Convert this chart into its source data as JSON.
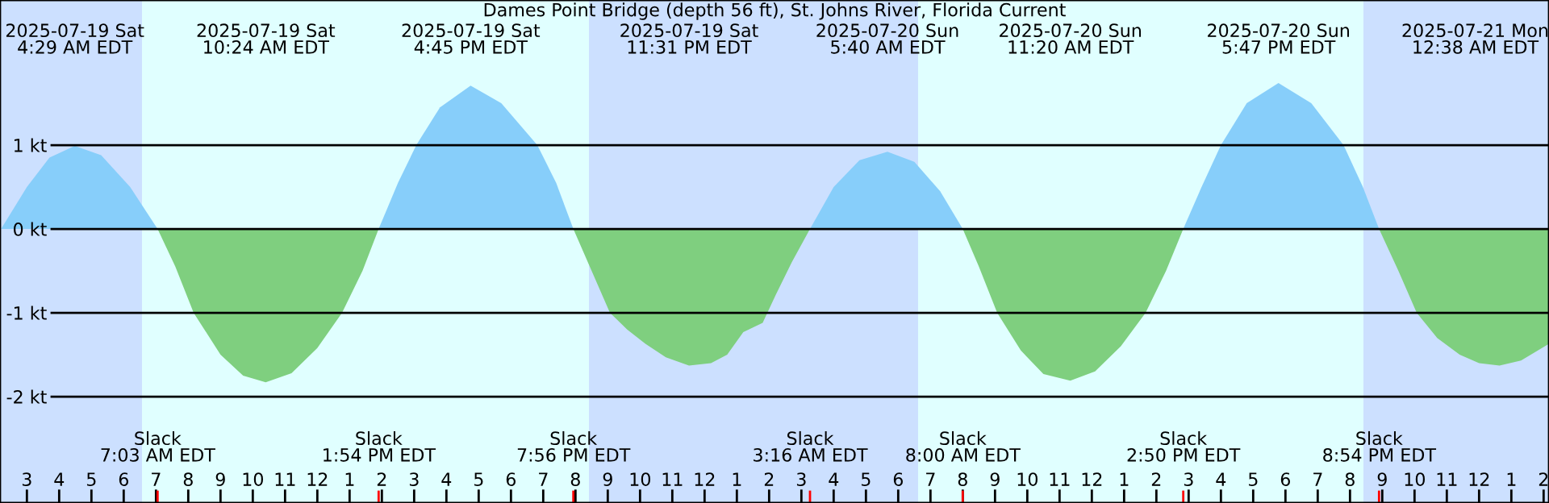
{
  "chart_data": {
    "type": "area",
    "title": "Dames Point Bridge (depth 56 ft), St. Johns River, Florida Current",
    "x": [
      "2025-07-19T02:12",
      "2025-07-19T03:00",
      "2025-07-19T03:42",
      "2025-07-19T04:29",
      "2025-07-19T05:18",
      "2025-07-19T06:12",
      "2025-07-19T07:03",
      "2025-07-19T07:36",
      "2025-07-19T08:10",
      "2025-07-19T09:00",
      "2025-07-19T09:42",
      "2025-07-19T10:24",
      "2025-07-19T11:12",
      "2025-07-19T12:00",
      "2025-07-19T12:46",
      "2025-07-19T13:24",
      "2025-07-19T13:54",
      "2025-07-19T14:30",
      "2025-07-19T15:04",
      "2025-07-19T15:48",
      "2025-07-19T16:45",
      "2025-07-19T17:42",
      "2025-07-19T18:49",
      "2025-07-19T19:24",
      "2025-07-19T19:56",
      "2025-07-19T20:30",
      "2025-07-19T21:04",
      "2025-07-19T21:36",
      "2025-07-19T22:10",
      "2025-07-19T22:48",
      "2025-07-19T23:31",
      "2025-07-20T00:12",
      "2025-07-20T00:42",
      "2025-07-20T01:12",
      "2025-07-20T01:48",
      "2025-07-20T02:12",
      "2025-07-20T02:42",
      "2025-07-20T03:16",
      "2025-07-20T04:00",
      "2025-07-20T04:48",
      "2025-07-20T05:40",
      "2025-07-20T06:30",
      "2025-07-20T07:18",
      "2025-07-20T08:00",
      "2025-07-20T08:30",
      "2025-07-20T09:04",
      "2025-07-20T09:48",
      "2025-07-20T10:30",
      "2025-07-20T11:20",
      "2025-07-20T12:06",
      "2025-07-20T12:54",
      "2025-07-20T13:40",
      "2025-07-20T14:18",
      "2025-07-20T14:50",
      "2025-07-20T15:24",
      "2025-07-20T16:00",
      "2025-07-20T16:48",
      "2025-07-20T17:47",
      "2025-07-20T18:48",
      "2025-07-20T19:48",
      "2025-07-20T20:24",
      "2025-07-20T20:54",
      "2025-07-20T21:30",
      "2025-07-20T22:04",
      "2025-07-20T22:42",
      "2025-07-20T23:24",
      "2025-07-21T00:00",
      "2025-07-21T00:38",
      "2025-07-21T01:18",
      "2025-07-21T02:10"
    ],
    "series": [
      {
        "color": "#87cefa",
        "values": [
          0,
          0.5,
          0.85,
          0.99,
          0.88,
          0.5,
          0,
          null,
          null,
          null,
          null,
          null,
          null,
          null,
          null,
          null,
          0,
          0.55,
          1.0,
          1.45,
          1.71,
          1.5,
          1.0,
          0.55,
          0,
          null,
          null,
          null,
          null,
          null,
          null,
          null,
          null,
          null,
          null,
          null,
          null,
          0,
          0.5,
          0.82,
          0.92,
          0.8,
          0.45,
          0,
          null,
          null,
          null,
          null,
          null,
          null,
          null,
          null,
          null,
          0,
          0.5,
          1.0,
          1.5,
          1.74,
          1.5,
          1.0,
          0.5,
          0,
          null,
          null,
          null,
          null,
          null,
          null,
          null,
          null
        ]
      },
      {
        "color": "#7fcf7f",
        "values": [
          null,
          null,
          null,
          null,
          null,
          null,
          0,
          -0.45,
          -1.0,
          -1.5,
          -1.75,
          -1.83,
          -1.72,
          -1.42,
          -1.0,
          -0.5,
          0,
          null,
          null,
          null,
          null,
          null,
          null,
          null,
          0,
          -0.5,
          -1.0,
          -1.2,
          -1.37,
          -1.53,
          -1.63,
          -1.6,
          -1.5,
          -1.23,
          -1.12,
          -0.79,
          -0.4,
          0,
          null,
          null,
          null,
          null,
          null,
          0,
          -0.45,
          -1.0,
          -1.45,
          -1.73,
          -1.81,
          -1.7,
          -1.4,
          -1.0,
          -0.5,
          0,
          null,
          null,
          null,
          null,
          null,
          null,
          null,
          0,
          -0.5,
          -1.0,
          -1.3,
          -1.5,
          -1.6,
          -1.63,
          -1.57,
          -1.37
        ]
      }
    ],
    "xlim": [
      "2025-07-19T02:10",
      "2025-07-21T02:10"
    ],
    "xticks": [
      {
        "value": "2025-07-19T03:00",
        "label": "3"
      },
      {
        "value": "2025-07-19T04:00",
        "label": "4"
      },
      {
        "value": "2025-07-19T05:00",
        "label": "5"
      },
      {
        "value": "2025-07-19T06:00",
        "label": "6"
      },
      {
        "value": "2025-07-19T07:00",
        "label": "7"
      },
      {
        "value": "2025-07-19T08:00",
        "label": "8"
      },
      {
        "value": "2025-07-19T09:00",
        "label": "9"
      },
      {
        "value": "2025-07-19T10:00",
        "label": "10"
      },
      {
        "value": "2025-07-19T11:00",
        "label": "11"
      },
      {
        "value": "2025-07-19T12:00",
        "label": "12"
      },
      {
        "value": "2025-07-19T13:00",
        "label": "1"
      },
      {
        "value": "2025-07-19T14:00",
        "label": "2"
      },
      {
        "value": "2025-07-19T15:00",
        "label": "3"
      },
      {
        "value": "2025-07-19T16:00",
        "label": "4"
      },
      {
        "value": "2025-07-19T17:00",
        "label": "5"
      },
      {
        "value": "2025-07-19T18:00",
        "label": "6"
      },
      {
        "value": "2025-07-19T19:00",
        "label": "7"
      },
      {
        "value": "2025-07-19T20:00",
        "label": "8"
      },
      {
        "value": "2025-07-19T21:00",
        "label": "9"
      },
      {
        "value": "2025-07-19T22:00",
        "label": "10"
      },
      {
        "value": "2025-07-19T23:00",
        "label": "11"
      },
      {
        "value": "2025-07-20T00:00",
        "label": "12"
      },
      {
        "value": "2025-07-20T01:00",
        "label": "1"
      },
      {
        "value": "2025-07-20T02:00",
        "label": "2"
      },
      {
        "value": "2025-07-20T03:00",
        "label": "3"
      },
      {
        "value": "2025-07-20T04:00",
        "label": "4"
      },
      {
        "value": "2025-07-20T05:00",
        "label": "5"
      },
      {
        "value": "2025-07-20T06:00",
        "label": "6"
      },
      {
        "value": "2025-07-20T07:00",
        "label": "7"
      },
      {
        "value": "2025-07-20T08:00",
        "label": "8"
      },
      {
        "value": "2025-07-20T09:00",
        "label": "9"
      },
      {
        "value": "2025-07-20T10:00",
        "label": "10"
      },
      {
        "value": "2025-07-20T11:00",
        "label": "11"
      },
      {
        "value": "2025-07-20T12:00",
        "label": "12"
      },
      {
        "value": "2025-07-20T13:00",
        "label": "1"
      },
      {
        "value": "2025-07-20T14:00",
        "label": "2"
      },
      {
        "value": "2025-07-20T15:00",
        "label": "3"
      },
      {
        "value": "2025-07-20T16:00",
        "label": "4"
      },
      {
        "value": "2025-07-20T17:00",
        "label": "5"
      },
      {
        "value": "2025-07-20T18:00",
        "label": "6"
      },
      {
        "value": "2025-07-20T19:00",
        "label": "7"
      },
      {
        "value": "2025-07-20T20:00",
        "label": "8"
      },
      {
        "value": "2025-07-20T21:00",
        "label": "9"
      },
      {
        "value": "2025-07-20T22:00",
        "label": "10"
      },
      {
        "value": "2025-07-20T23:00",
        "label": "11"
      },
      {
        "value": "2025-07-21T00:00",
        "label": "12"
      },
      {
        "value": "2025-07-21T01:00",
        "label": "1"
      },
      {
        "value": "2025-07-21T02:00",
        "label": "2"
      }
    ],
    "ylim": [
      -3.269,
      2.731
    ],
    "yticks": [
      {
        "value": 1,
        "label": "1 kt"
      },
      {
        "value": 0,
        "label": "0 kt"
      },
      {
        "value": -1,
        "label": "-1 kt"
      },
      {
        "value": -2,
        "label": "-2 kt"
      }
    ],
    "grid": "y",
    "bands": [
      {
        "axis": "x",
        "from": "2025-07-19T02:10",
        "to": "2025-07-19T06:34",
        "color": "#cce0ff"
      },
      {
        "axis": "x",
        "from": "2025-07-19T06:34",
        "to": "2025-07-19T20:25",
        "color": "#e0ffff"
      },
      {
        "axis": "x",
        "from": "2025-07-19T20:25",
        "to": "2025-07-20T06:37",
        "color": "#cce0ff"
      },
      {
        "axis": "x",
        "from": "2025-07-20T06:37",
        "to": "2025-07-20T20:25",
        "color": "#e0ffff"
      },
      {
        "axis": "x",
        "from": "2025-07-20T20:25",
        "to": "2025-07-21T02:10",
        "color": "#cce0ff"
      }
    ],
    "annotations": [
      "2025-07-19 Sat\n4:29 AM EDT",
      "2025-07-19 Sat\n10:24 AM EDT",
      "2025-07-19 Sat\n4:45 PM EDT",
      "2025-07-19 Sat\n11:31 PM EDT",
      "2025-07-20 Sun\n5:40 AM EDT",
      "2025-07-20 Sun\n11:20 AM EDT",
      "2025-07-20 Sun\n5:47 PM EDT",
      "2025-07-21 Mon\n12:38 AM EDT",
      "Slack\n7:03 AM EDT",
      "Slack\n1:54 PM EDT",
      "Slack\n7:56 PM EDT",
      "Slack\n3:16 AM EDT",
      "Slack\n8:00 AM EDT",
      "Slack\n2:50 PM EDT",
      "Slack\n8:54 PM EDT"
    ]
  }
}
